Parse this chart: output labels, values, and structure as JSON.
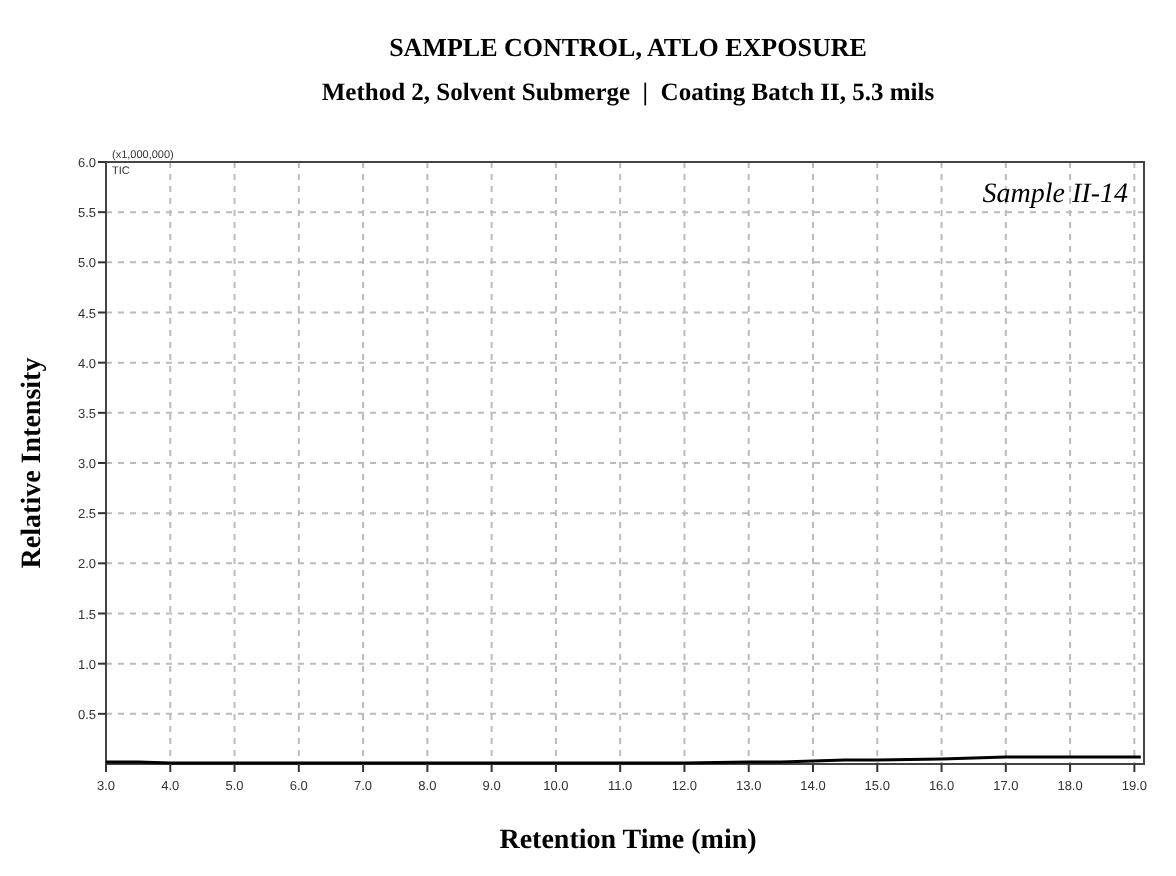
{
  "chart_data": {
    "type": "line",
    "title": "SAMPLE CONTROL, ATLO EXPOSURE",
    "subtitle": "Method 2, Solvent Submerge  |  Coating Batch II, 5.3 mils",
    "xlabel": "Retention Time (min)",
    "ylabel": "Relative Intensity",
    "annotations": [
      "(x1,000,000)",
      "TIC",
      "Sample II-14"
    ],
    "x": [
      3.0,
      3.5,
      4.0,
      5.0,
      6.0,
      7.0,
      8.0,
      9.0,
      10.0,
      11.0,
      12.0,
      13.0,
      13.5,
      14.0,
      14.5,
      15.0,
      16.0,
      16.5,
      17.0,
      18.0,
      19.1
    ],
    "series": [
      {
        "color": "#000000",
        "values": [
          0.02,
          0.02,
          0.01,
          0.01,
          0.01,
          0.01,
          0.01,
          0.01,
          0.01,
          0.01,
          0.01,
          0.02,
          0.02,
          0.03,
          0.04,
          0.04,
          0.05,
          0.06,
          0.07,
          0.07,
          0.07
        ]
      }
    ],
    "xlim": [
      3.0,
      19.15
    ],
    "xticks": [
      {
        "value": 3,
        "label": "3.0"
      },
      {
        "value": 4,
        "label": "4.0"
      },
      {
        "value": 5,
        "label": "5.0"
      },
      {
        "value": 6,
        "label": "6.0"
      },
      {
        "value": 7,
        "label": "7.0"
      },
      {
        "value": 8,
        "label": "8.0"
      },
      {
        "value": 9,
        "label": "9.0"
      },
      {
        "value": 10,
        "label": "10.0"
      },
      {
        "value": 11,
        "label": "11.0"
      },
      {
        "value": 12,
        "label": "12.0"
      },
      {
        "value": 13,
        "label": "13.0"
      },
      {
        "value": 14,
        "label": "14.0"
      },
      {
        "value": 15,
        "label": "15.0"
      },
      {
        "value": 16,
        "label": "16.0"
      },
      {
        "value": 17,
        "label": "17.0"
      },
      {
        "value": 18,
        "label": "18.0"
      },
      {
        "value": 19,
        "label": "19.0"
      }
    ],
    "ylim": [
      0,
      6
    ],
    "yticks": [
      0.5,
      {
        "value": 1,
        "label": "1.0"
      },
      1.5,
      {
        "value": 2,
        "label": "2.0"
      },
      2.5,
      {
        "value": 3,
        "label": "3.0"
      },
      3.5,
      {
        "value": 4,
        "label": "4.0"
      },
      4.5,
      {
        "value": 5,
        "label": "5.0"
      },
      5.5,
      {
        "value": 6,
        "label": "6.0"
      }
    ],
    "grid": true,
    "marker": "none",
    "line_style": "solid"
  }
}
